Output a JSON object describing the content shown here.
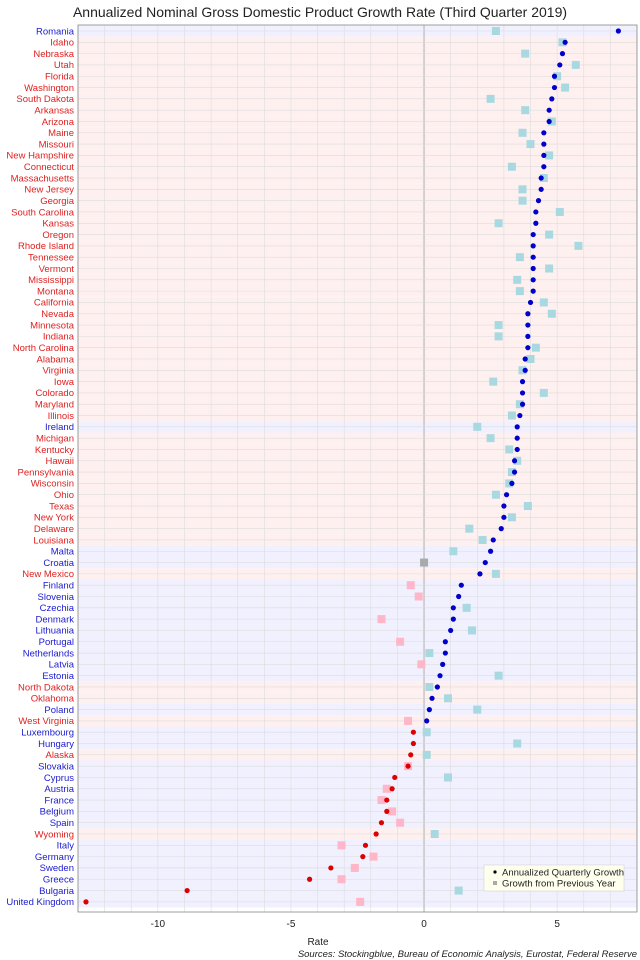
{
  "chart_data": {
    "type": "scatter",
    "title": "Annualized Nominal Gross Domestic Product Growth Rate (Third Quarter 2019)",
    "xlabel": "Rate",
    "xlim": [
      -13,
      8
    ],
    "xticks": [
      -10,
      -5,
      0,
      5
    ],
    "source": "Sources: Stockingblue, Bureau of Economic Analysis, Eurostat, Federal Reserve",
    "legend": {
      "position": "bottom-right",
      "entries": [
        "Annualized Quarterly Growth",
        "Growth from Previous Year"
      ]
    },
    "colors": {
      "us_state": "#e02020",
      "eu_country": "#1a1ad0",
      "positive_quarterly": "#0000cc",
      "negative_quarterly": "#dd0000",
      "zero_quarterly": "#aaaaaa",
      "positive_yearly": "#a8d8e0",
      "negative_yearly": "#ffb6c8",
      "us_band": "#fff0f0",
      "eu_band": "#f0f0ff"
    },
    "rows": [
      {
        "name": "Romania",
        "group": "EU",
        "quarterly": 7.3,
        "yearly": 2.7
      },
      {
        "name": "Idaho",
        "group": "US",
        "quarterly": 5.3,
        "yearly": 5.2
      },
      {
        "name": "Nebraska",
        "group": "US",
        "quarterly": 5.2,
        "yearly": 3.8
      },
      {
        "name": "Utah",
        "group": "US",
        "quarterly": 5.1,
        "yearly": 5.7
      },
      {
        "name": "Florida",
        "group": "US",
        "quarterly": 4.9,
        "yearly": 5.0
      },
      {
        "name": "Washington",
        "group": "US",
        "quarterly": 4.9,
        "yearly": 5.3
      },
      {
        "name": "South Dakota",
        "group": "US",
        "quarterly": 4.8,
        "yearly": 2.5
      },
      {
        "name": "Arkansas",
        "group": "US",
        "quarterly": 4.7,
        "yearly": 3.8
      },
      {
        "name": "Arizona",
        "group": "US",
        "quarterly": 4.7,
        "yearly": 4.8
      },
      {
        "name": "Maine",
        "group": "US",
        "quarterly": 4.5,
        "yearly": 3.7
      },
      {
        "name": "Missouri",
        "group": "US",
        "quarterly": 4.5,
        "yearly": 4.0
      },
      {
        "name": "New Hampshire",
        "group": "US",
        "quarterly": 4.5,
        "yearly": 4.7
      },
      {
        "name": "Connecticut",
        "group": "US",
        "quarterly": 4.5,
        "yearly": 3.3
      },
      {
        "name": "Massachusetts",
        "group": "US",
        "quarterly": 4.4,
        "yearly": 4.5
      },
      {
        "name": "New Jersey",
        "group": "US",
        "quarterly": 4.4,
        "yearly": 3.7
      },
      {
        "name": "Georgia",
        "group": "US",
        "quarterly": 4.3,
        "yearly": 3.7
      },
      {
        "name": "South Carolina",
        "group": "US",
        "quarterly": 4.2,
        "yearly": 5.1
      },
      {
        "name": "Kansas",
        "group": "US",
        "quarterly": 4.2,
        "yearly": 2.8
      },
      {
        "name": "Oregon",
        "group": "US",
        "quarterly": 4.1,
        "yearly": 4.7
      },
      {
        "name": "Rhode Island",
        "group": "US",
        "quarterly": 4.1,
        "yearly": 5.8
      },
      {
        "name": "Tennessee",
        "group": "US",
        "quarterly": 4.1,
        "yearly": 3.6
      },
      {
        "name": "Vermont",
        "group": "US",
        "quarterly": 4.1,
        "yearly": 4.7
      },
      {
        "name": "Mississippi",
        "group": "US",
        "quarterly": 4.1,
        "yearly": 3.5
      },
      {
        "name": "Montana",
        "group": "US",
        "quarterly": 4.1,
        "yearly": 3.6
      },
      {
        "name": "California",
        "group": "US",
        "quarterly": 4.0,
        "yearly": 4.5
      },
      {
        "name": "Nevada",
        "group": "US",
        "quarterly": 3.9,
        "yearly": 4.8
      },
      {
        "name": "Minnesota",
        "group": "US",
        "quarterly": 3.9,
        "yearly": 2.8
      },
      {
        "name": "Indiana",
        "group": "US",
        "quarterly": 3.9,
        "yearly": 2.8
      },
      {
        "name": "North Carolina",
        "group": "US",
        "quarterly": 3.9,
        "yearly": 4.2
      },
      {
        "name": "Alabama",
        "group": "US",
        "quarterly": 3.8,
        "yearly": 4.0
      },
      {
        "name": "Virginia",
        "group": "US",
        "quarterly": 3.8,
        "yearly": 3.7
      },
      {
        "name": "Iowa",
        "group": "US",
        "quarterly": 3.7,
        "yearly": 2.6
      },
      {
        "name": "Colorado",
        "group": "US",
        "quarterly": 3.7,
        "yearly": 4.5
      },
      {
        "name": "Maryland",
        "group": "US",
        "quarterly": 3.7,
        "yearly": 3.6
      },
      {
        "name": "Illinois",
        "group": "US",
        "quarterly": 3.6,
        "yearly": 3.3
      },
      {
        "name": "Ireland",
        "group": "EU",
        "quarterly": 3.5,
        "yearly": 2.0
      },
      {
        "name": "Michigan",
        "group": "US",
        "quarterly": 3.5,
        "yearly": 2.5
      },
      {
        "name": "Kentucky",
        "group": "US",
        "quarterly": 3.5,
        "yearly": 3.2
      },
      {
        "name": "Hawaii",
        "group": "US",
        "quarterly": 3.4,
        "yearly": 3.5
      },
      {
        "name": "Pennsylvania",
        "group": "US",
        "quarterly": 3.4,
        "yearly": 3.3
      },
      {
        "name": "Wisconsin",
        "group": "US",
        "quarterly": 3.3,
        "yearly": 3.2
      },
      {
        "name": "Ohio",
        "group": "US",
        "quarterly": 3.1,
        "yearly": 2.7
      },
      {
        "name": "Texas",
        "group": "US",
        "quarterly": 3.0,
        "yearly": 3.9
      },
      {
        "name": "New York",
        "group": "US",
        "quarterly": 3.0,
        "yearly": 3.3
      },
      {
        "name": "Delaware",
        "group": "US",
        "quarterly": 2.9,
        "yearly": 1.7
      },
      {
        "name": "Louisiana",
        "group": "US",
        "quarterly": 2.6,
        "yearly": 2.2
      },
      {
        "name": "Malta",
        "group": "EU",
        "quarterly": 2.5,
        "yearly": 1.1
      },
      {
        "name": "Croatia",
        "group": "EU",
        "quarterly": 2.3,
        "yearly": 0.0
      },
      {
        "name": "New Mexico",
        "group": "US",
        "quarterly": 2.1,
        "yearly": 2.7
      },
      {
        "name": "Finland",
        "group": "EU",
        "quarterly": 1.4,
        "yearly": -0.5
      },
      {
        "name": "Slovenia",
        "group": "EU",
        "quarterly": 1.3,
        "yearly": -0.2
      },
      {
        "name": "Czechia",
        "group": "EU",
        "quarterly": 1.1,
        "yearly": 1.6
      },
      {
        "name": "Denmark",
        "group": "EU",
        "quarterly": 1.1,
        "yearly": -1.6
      },
      {
        "name": "Lithuania",
        "group": "EU",
        "quarterly": 1.0,
        "yearly": 1.8
      },
      {
        "name": "Portugal",
        "group": "EU",
        "quarterly": 0.8,
        "yearly": -0.9
      },
      {
        "name": "Netherlands",
        "group": "EU",
        "quarterly": 0.8,
        "yearly": 0.2
      },
      {
        "name": "Latvia",
        "group": "EU",
        "quarterly": 0.7,
        "yearly": -0.1
      },
      {
        "name": "Estonia",
        "group": "EU",
        "quarterly": 0.6,
        "yearly": 2.8
      },
      {
        "name": "North Dakota",
        "group": "US",
        "quarterly": 0.5,
        "yearly": 0.2
      },
      {
        "name": "Oklahoma",
        "group": "US",
        "quarterly": 0.3,
        "yearly": 0.9
      },
      {
        "name": "Poland",
        "group": "EU",
        "quarterly": 0.2,
        "yearly": 2.0
      },
      {
        "name": "West Virginia",
        "group": "US",
        "quarterly": 0.1,
        "yearly": -0.6
      },
      {
        "name": "Luxembourg",
        "group": "EU",
        "quarterly": -0.4,
        "yearly": 0.1
      },
      {
        "name": "Hungary",
        "group": "EU",
        "quarterly": -0.4,
        "yearly": 3.5
      },
      {
        "name": "Alaska",
        "group": "US",
        "quarterly": -0.5,
        "yearly": 0.1
      },
      {
        "name": "Slovakia",
        "group": "EU",
        "quarterly": -0.6,
        "yearly": -0.6
      },
      {
        "name": "Cyprus",
        "group": "EU",
        "quarterly": -1.1,
        "yearly": 0.9
      },
      {
        "name": "Austria",
        "group": "EU",
        "quarterly": -1.2,
        "yearly": -1.4
      },
      {
        "name": "France",
        "group": "EU",
        "quarterly": -1.4,
        "yearly": -1.6
      },
      {
        "name": "Belgium",
        "group": "EU",
        "quarterly": -1.4,
        "yearly": -1.2
      },
      {
        "name": "Spain",
        "group": "EU",
        "quarterly": -1.6,
        "yearly": -0.9
      },
      {
        "name": "Wyoming",
        "group": "US",
        "quarterly": -1.8,
        "yearly": 0.4
      },
      {
        "name": "Italy",
        "group": "EU",
        "quarterly": -2.2,
        "yearly": -3.1
      },
      {
        "name": "Germany",
        "group": "EU",
        "quarterly": -2.3,
        "yearly": -1.9
      },
      {
        "name": "Sweden",
        "group": "EU",
        "quarterly": -3.5,
        "yearly": -2.6
      },
      {
        "name": "Greece",
        "group": "EU",
        "quarterly": -4.3,
        "yearly": -3.1
      },
      {
        "name": "Bulgaria",
        "group": "EU",
        "quarterly": -8.9,
        "yearly": 1.3
      },
      {
        "name": "United Kingdom",
        "group": "EU",
        "quarterly": -12.7,
        "yearly": -2.4
      }
    ]
  }
}
